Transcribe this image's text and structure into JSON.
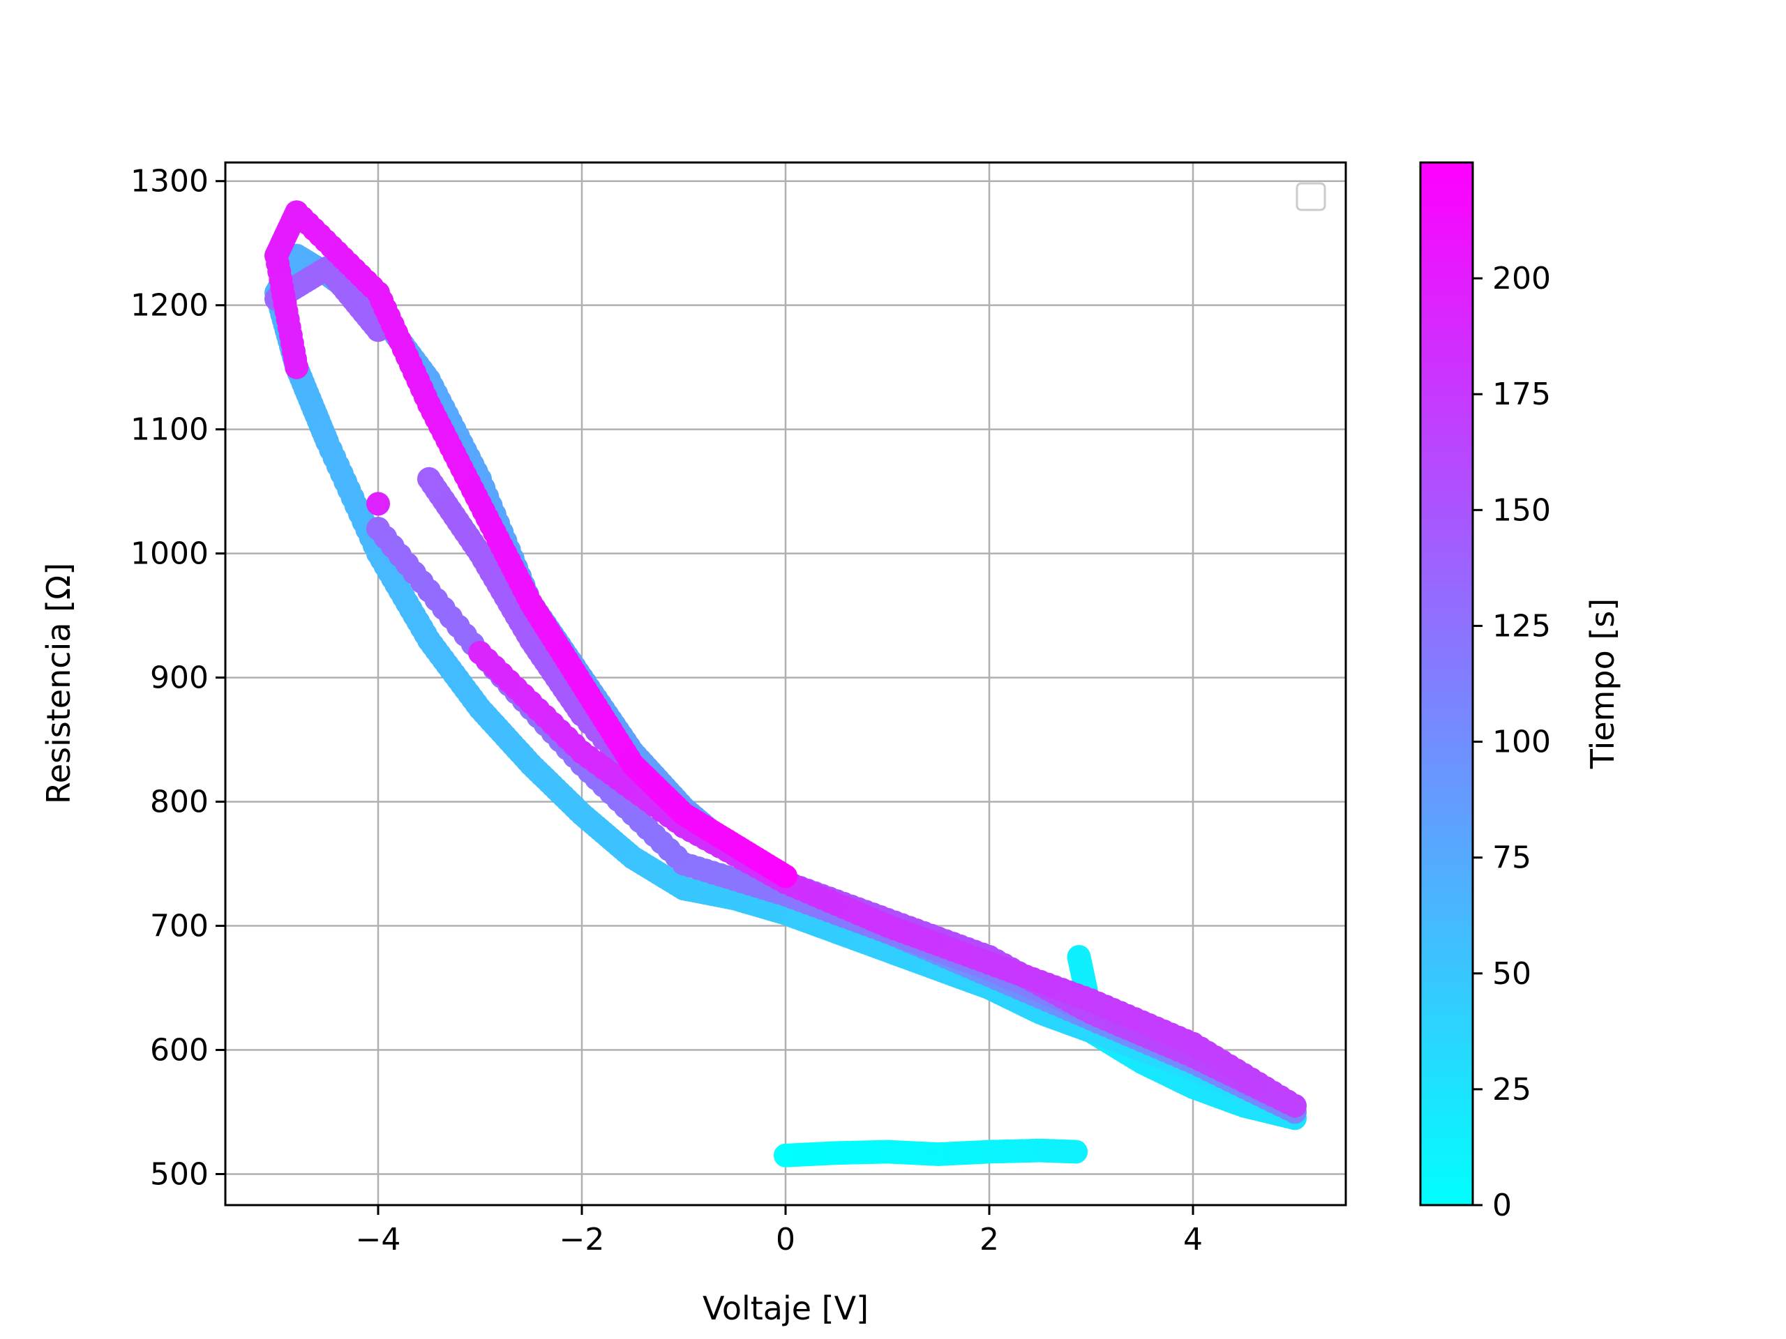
{
  "chart_data": {
    "type": "scatter",
    "title": "",
    "xlabel": "Voltaje [V]",
    "ylabel": "Resistencia [Ω]",
    "xlim": [
      -5.5,
      5.5
    ],
    "ylim": [
      475,
      1315
    ],
    "xticks": [
      {
        "value": -4,
        "label": "−4"
      },
      {
        "value": -2,
        "label": "−2"
      },
      {
        "value": 0,
        "label": "0"
      },
      {
        "value": 2,
        "label": "2"
      },
      {
        "value": 4,
        "label": "4"
      }
    ],
    "yticks": [
      {
        "value": 500,
        "label": "500"
      },
      {
        "value": 600,
        "label": "600"
      },
      {
        "value": 700,
        "label": "700"
      },
      {
        "value": 800,
        "label": "800"
      },
      {
        "value": 900,
        "label": "900"
      },
      {
        "value": 1000,
        "label": "1000"
      },
      {
        "value": 1100,
        "label": "1100"
      },
      {
        "value": 1200,
        "label": "1200"
      },
      {
        "value": 1300,
        "label": "1300"
      }
    ],
    "grid": true,
    "legend": {
      "placement": "top-right",
      "entries": []
    },
    "colormap": {
      "name": "cool",
      "start_color": "#00ffff",
      "end_color": "#ff00ff"
    },
    "colorbar": {
      "label": "Tiempo [s]",
      "range": [
        0,
        225
      ],
      "ticks": [
        {
          "value": 0,
          "label": "0"
        },
        {
          "value": 25,
          "label": "25"
        },
        {
          "value": 50,
          "label": "50"
        },
        {
          "value": 75,
          "label": "75"
        },
        {
          "value": 100,
          "label": "100"
        },
        {
          "value": 125,
          "label": "125"
        },
        {
          "value": 150,
          "label": "150"
        },
        {
          "value": 175,
          "label": "175"
        },
        {
          "value": 200,
          "label": "200"
        }
      ]
    },
    "series": [
      {
        "note_time_field": "t",
        "points": [
          {
            "x": 0.0,
            "y": 515,
            "t": 0
          },
          {
            "x": 0.5,
            "y": 517,
            "t": 2
          },
          {
            "x": 1.0,
            "y": 518,
            "t": 4
          },
          {
            "x": 1.5,
            "y": 516,
            "t": 6
          },
          {
            "x": 2.0,
            "y": 518,
            "t": 8
          },
          {
            "x": 2.5,
            "y": 519,
            "t": 10
          },
          {
            "x": 2.85,
            "y": 518,
            "t": 12
          },
          {
            "x": 2.88,
            "y": 675,
            "t": 13
          },
          {
            "x": 2.95,
            "y": 648,
            "t": 14
          },
          {
            "x": 3.0,
            "y": 615,
            "t": 16
          },
          {
            "x": 3.5,
            "y": 590,
            "t": 19
          },
          {
            "x": 4.0,
            "y": 570,
            "t": 22
          },
          {
            "x": 4.5,
            "y": 555,
            "t": 24
          },
          {
            "x": 5.0,
            "y": 545,
            "t": 26
          },
          {
            "x": 4.5,
            "y": 565,
            "t": 28
          },
          {
            "x": 4.0,
            "y": 585,
            "t": 30
          },
          {
            "x": 3.5,
            "y": 600,
            "t": 32
          },
          {
            "x": 3.0,
            "y": 615,
            "t": 34
          },
          {
            "x": 2.5,
            "y": 630,
            "t": 36
          },
          {
            "x": 2.0,
            "y": 650,
            "t": 38
          },
          {
            "x": 1.5,
            "y": 665,
            "t": 40
          },
          {
            "x": 1.0,
            "y": 680,
            "t": 42
          },
          {
            "x": 0.5,
            "y": 695,
            "t": 44
          },
          {
            "x": 0.0,
            "y": 710,
            "t": 46
          },
          {
            "x": -0.5,
            "y": 722,
            "t": 48
          },
          {
            "x": -1.0,
            "y": 730,
            "t": 50
          },
          {
            "x": -1.5,
            "y": 755,
            "t": 52
          },
          {
            "x": -2.0,
            "y": 790,
            "t": 54
          },
          {
            "x": -2.5,
            "y": 830,
            "t": 56
          },
          {
            "x": -3.0,
            "y": 875,
            "t": 58
          },
          {
            "x": -3.5,
            "y": 930,
            "t": 60
          },
          {
            "x": -4.0,
            "y": 1000,
            "t": 62
          },
          {
            "x": -4.5,
            "y": 1090,
            "t": 64
          },
          {
            "x": -4.8,
            "y": 1150,
            "t": 66
          },
          {
            "x": -5.0,
            "y": 1210,
            "t": 68
          },
          {
            "x": -4.8,
            "y": 1240,
            "t": 70
          },
          {
            "x": -4.5,
            "y": 1225,
            "t": 72
          },
          {
            "x": -4.0,
            "y": 1195,
            "t": 74
          },
          {
            "x": -3.5,
            "y": 1140,
            "t": 76
          },
          {
            "x": -3.0,
            "y": 1060,
            "t": 78
          },
          {
            "x": -2.5,
            "y": 960,
            "t": 80
          },
          {
            "x": -2.0,
            "y": 900,
            "t": 82
          },
          {
            "x": -1.5,
            "y": 840,
            "t": 84
          },
          {
            "x": -1.0,
            "y": 795,
            "t": 86
          },
          {
            "x": -0.5,
            "y": 760,
            "t": 88
          },
          {
            "x": 0.0,
            "y": 730,
            "t": 90
          },
          {
            "x": 1.0,
            "y": 695,
            "t": 93
          },
          {
            "x": 2.0,
            "y": 660,
            "t": 96
          },
          {
            "x": 3.0,
            "y": 625,
            "t": 99
          },
          {
            "x": 4.0,
            "y": 590,
            "t": 102
          },
          {
            "x": 5.0,
            "y": 550,
            "t": 105
          },
          {
            "x": 4.0,
            "y": 600,
            "t": 108
          },
          {
            "x": 3.0,
            "y": 630,
            "t": 111
          },
          {
            "x": 2.0,
            "y": 665,
            "t": 114
          },
          {
            "x": 1.0,
            "y": 695,
            "t": 117
          },
          {
            "x": 0.0,
            "y": 725,
            "t": 120
          },
          {
            "x": -1.0,
            "y": 750,
            "t": 123
          },
          {
            "x": -2.0,
            "y": 830,
            "t": 126
          },
          {
            "x": -3.0,
            "y": 920,
            "t": 129
          },
          {
            "x": -4.0,
            "y": 1020,
            "t": 132
          },
          {
            "x": -5.0,
            "y": 1205,
            "t": 135
          },
          {
            "x": -4.5,
            "y": 1230,
            "t": 137
          },
          {
            "x": -4.0,
            "y": 1180,
            "t": 139
          },
          {
            "x": -3.5,
            "y": 1060,
            "t": 141
          },
          {
            "x": -3.0,
            "y": 1000,
            "t": 143
          },
          {
            "x": -2.5,
            "y": 930,
            "t": 145
          },
          {
            "x": -2.0,
            "y": 870,
            "t": 147
          },
          {
            "x": -1.0,
            "y": 780,
            "t": 150
          },
          {
            "x": 0.0,
            "y": 735,
            "t": 153
          },
          {
            "x": 1.0,
            "y": 705,
            "t": 156
          },
          {
            "x": 2.0,
            "y": 675,
            "t": 159
          },
          {
            "x": 3.0,
            "y": 630,
            "t": 162
          },
          {
            "x": 4.0,
            "y": 595,
            "t": 165
          },
          {
            "x": 5.0,
            "y": 555,
            "t": 168
          },
          {
            "x": 4.0,
            "y": 605,
            "t": 171
          },
          {
            "x": 3.0,
            "y": 640,
            "t": 174
          },
          {
            "x": 2.0,
            "y": 670,
            "t": 177
          },
          {
            "x": 1.0,
            "y": 700,
            "t": 180
          },
          {
            "x": 0.0,
            "y": 735,
            "t": 183
          },
          {
            "x": -1.0,
            "y": 780,
            "t": 186
          },
          {
            "x": -2.0,
            "y": 840,
            "t": 189
          },
          {
            "x": -3.0,
            "y": 920,
            "t": 192
          },
          {
            "x": -4.0,
            "y": 1040,
            "t": 195
          },
          {
            "x": -4.8,
            "y": 1150,
            "t": 198
          },
          {
            "x": -5.0,
            "y": 1240,
            "t": 200
          },
          {
            "x": -4.8,
            "y": 1275,
            "t": 202
          },
          {
            "x": -4.0,
            "y": 1210,
            "t": 205
          },
          {
            "x": -3.5,
            "y": 1120,
            "t": 207
          },
          {
            "x": -3.0,
            "y": 1040,
            "t": 209
          },
          {
            "x": -2.5,
            "y": 960,
            "t": 211
          },
          {
            "x": -2.0,
            "y": 895,
            "t": 213
          },
          {
            "x": -1.5,
            "y": 830,
            "t": 215
          },
          {
            "x": -1.0,
            "y": 790,
            "t": 217
          },
          {
            "x": -0.5,
            "y": 765,
            "t": 219
          },
          {
            "x": 0.0,
            "y": 740,
            "t": 222
          }
        ]
      }
    ]
  }
}
